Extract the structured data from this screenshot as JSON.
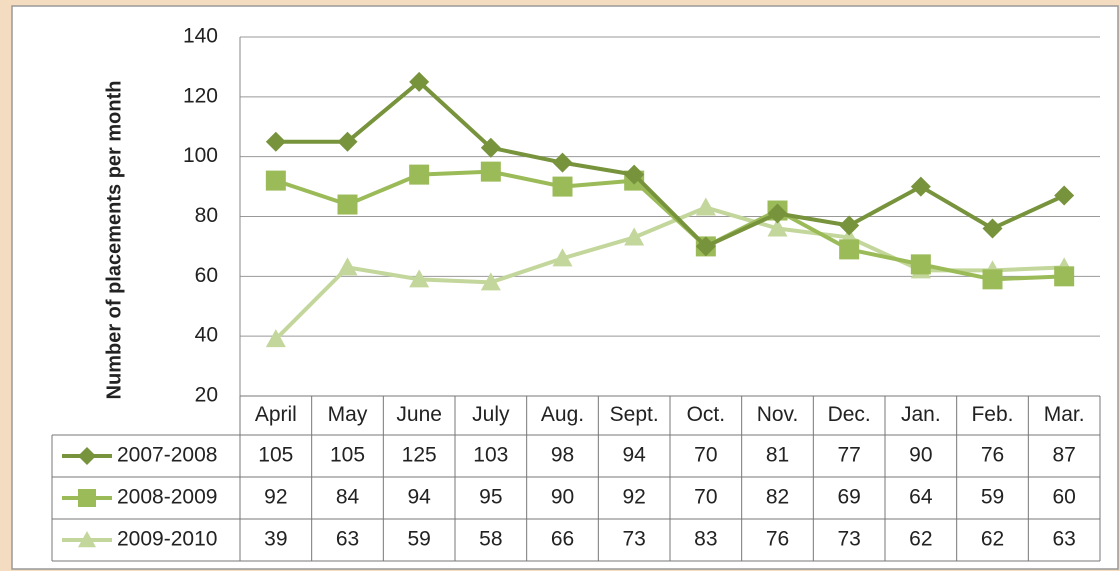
{
  "chart_data": {
    "type": "line",
    "y_label": "Number of placements per month",
    "categories": [
      "April",
      "May",
      "June",
      "July",
      "Aug.",
      "Sept.",
      "Oct.",
      "Nov.",
      "Dec.",
      "Jan.",
      "Feb.",
      "Mar."
    ],
    "series": [
      {
        "name": "2007-2008",
        "color": "#77933c",
        "marker": "diamond",
        "values": [
          105,
          105,
          125,
          103,
          98,
          94,
          70,
          81,
          77,
          90,
          76,
          87
        ]
      },
      {
        "name": "2008-2009",
        "color": "#9bbb59",
        "marker": "square",
        "values": [
          92,
          84,
          94,
          95,
          90,
          92,
          70,
          82,
          69,
          64,
          59,
          60
        ]
      },
      {
        "name": "2009-2010",
        "color": "#c3d69b",
        "marker": "triangle",
        "values": [
          39,
          63,
          59,
          58,
          66,
          73,
          83,
          76,
          73,
          62,
          62,
          63
        ]
      }
    ],
    "ylim": [
      20,
      140
    ],
    "yticks": [
      20,
      40,
      60,
      80,
      100,
      120,
      140
    ],
    "grid": true,
    "data_table": true
  }
}
